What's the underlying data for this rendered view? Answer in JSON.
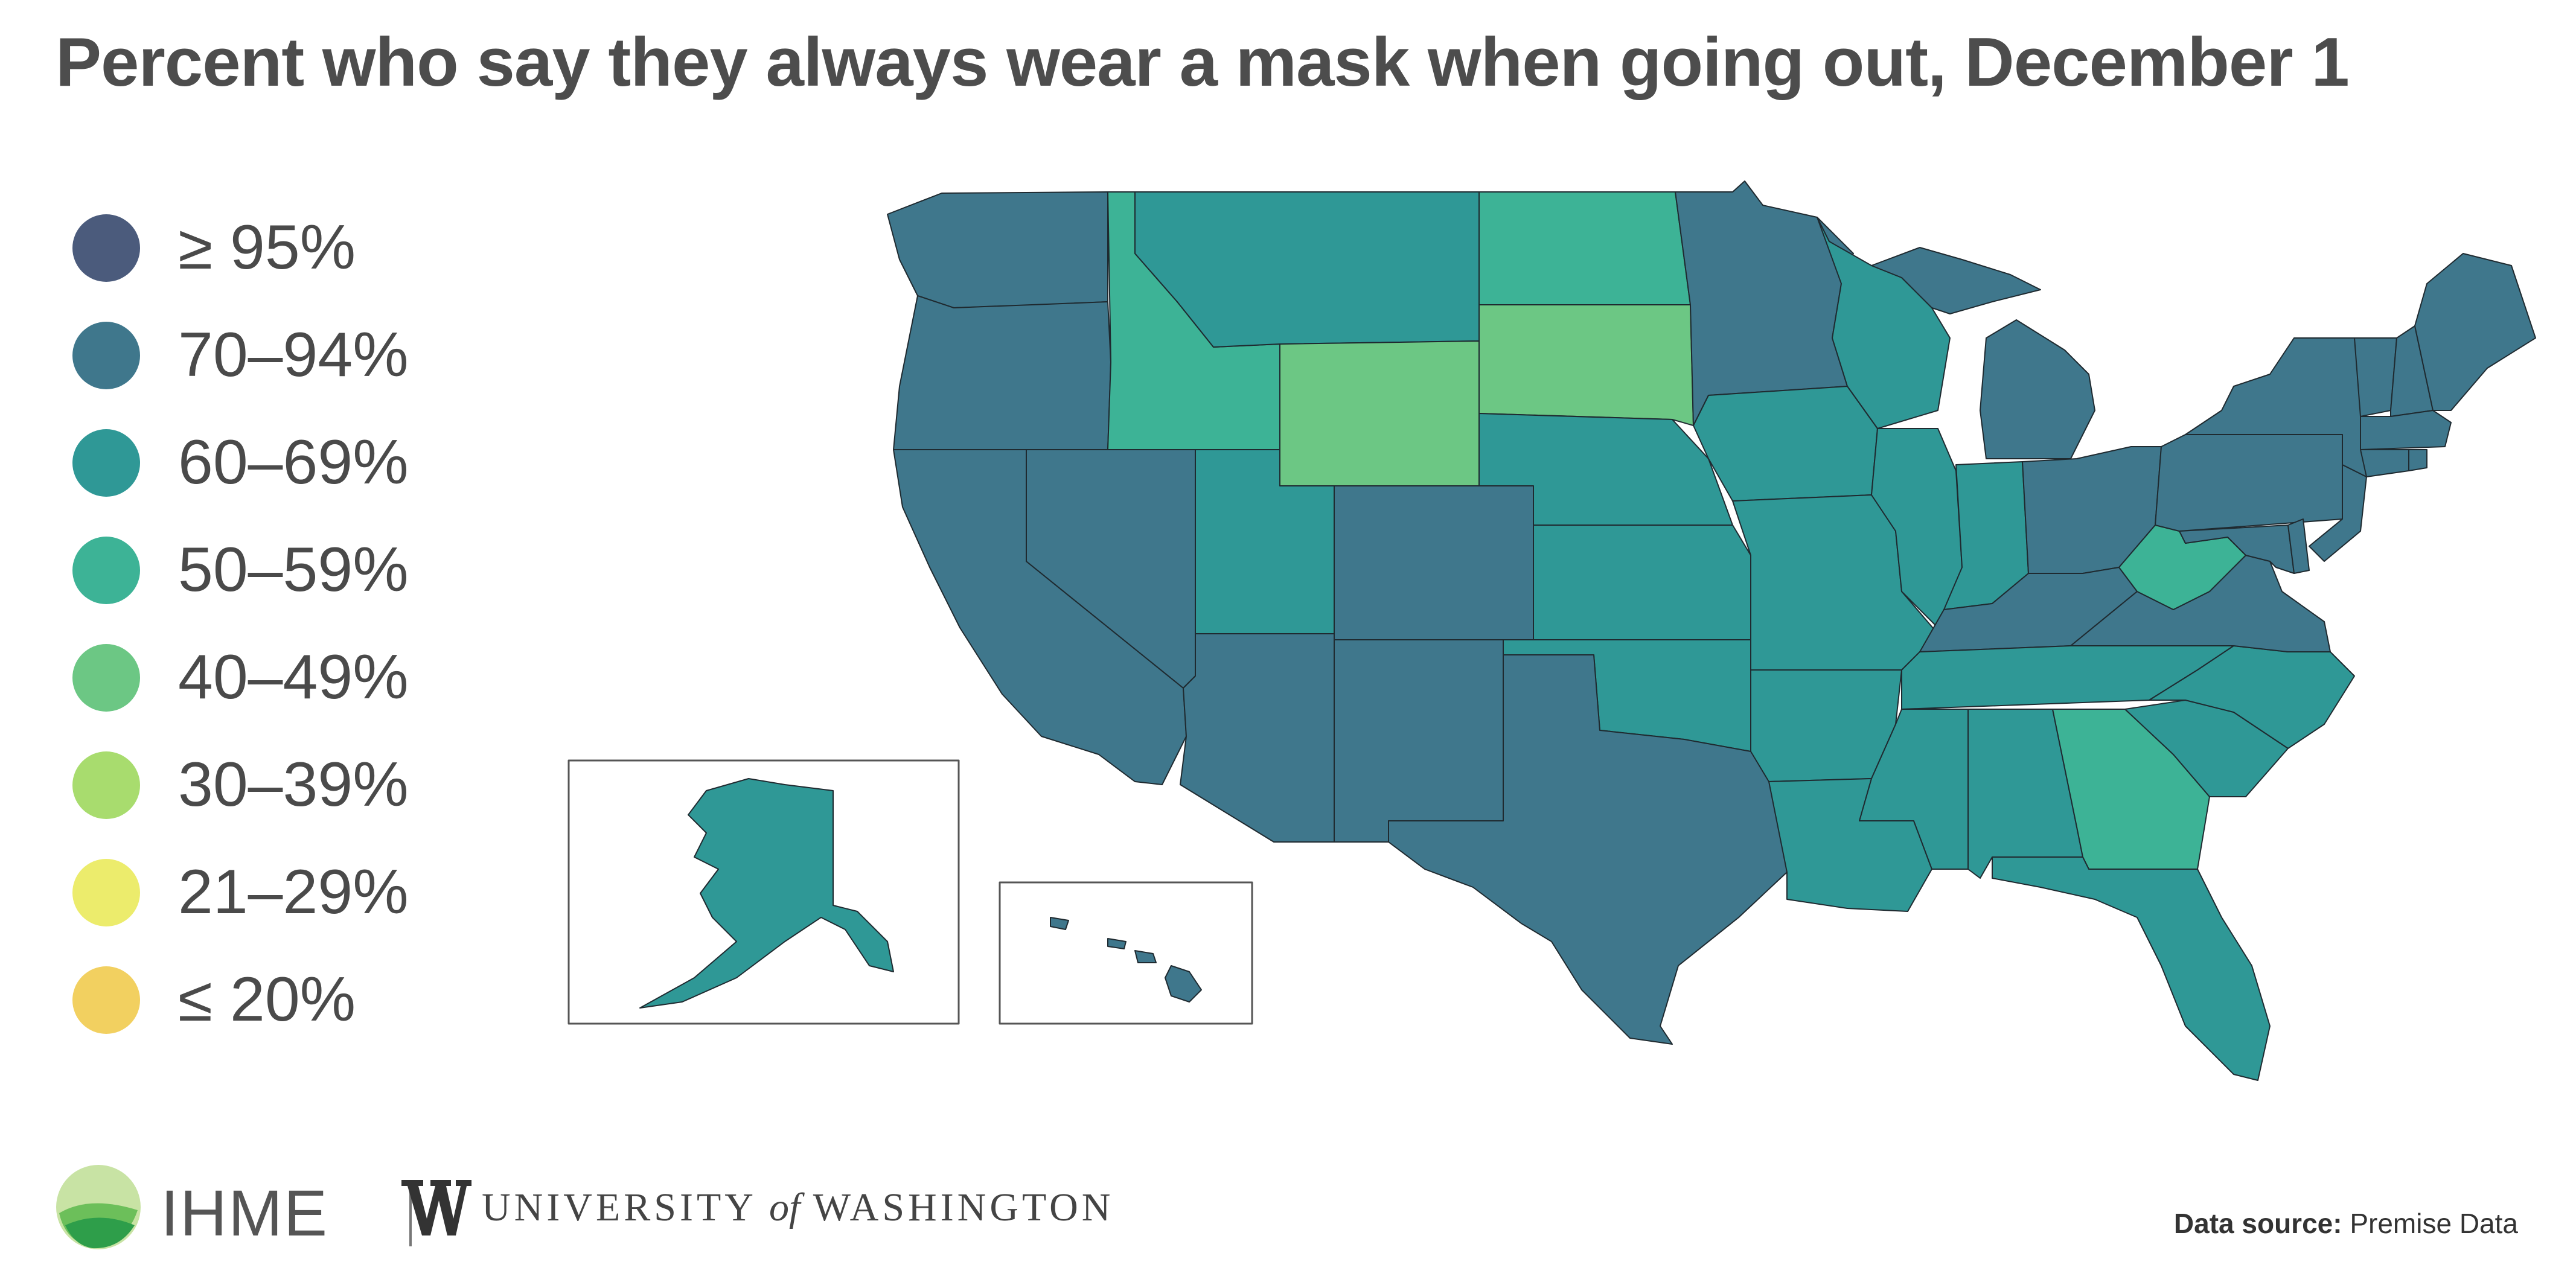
{
  "title": "Percent who say they always wear a mask when going out, December 1",
  "legend": [
    {
      "label": "≥ 95%",
      "color": "#4b5b7c"
    },
    {
      "label": "70–94%",
      "color": "#3f778c"
    },
    {
      "label": "60–69%",
      "color": "#2f9896"
    },
    {
      "label": "50–59%",
      "color": "#3db396"
    },
    {
      "label": "40–49%",
      "color": "#6cc784"
    },
    {
      "label": "30–39%",
      "color": "#a8dc6e"
    },
    {
      "label": "21–29%",
      "color": "#ecec6c"
    },
    {
      "label": "≤ 20%",
      "color": "#f2d060"
    }
  ],
  "colors": {
    "band_70_94": "#3f778c",
    "band_60_69": "#2f9896",
    "band_50_59": "#3db396",
    "band_40_49": "#6cc784",
    "ihme_logo_light": "#c8e3a4",
    "ihme_logo_dark": "#2e9e4a"
  },
  "footer": {
    "ihme": "IHME",
    "uw_prefix": "UNIVERSITY",
    "uw_of": "of",
    "uw_suffix": "WASHINGTON",
    "source_label": "Data source:",
    "source_value": "Premise Data"
  }
}
